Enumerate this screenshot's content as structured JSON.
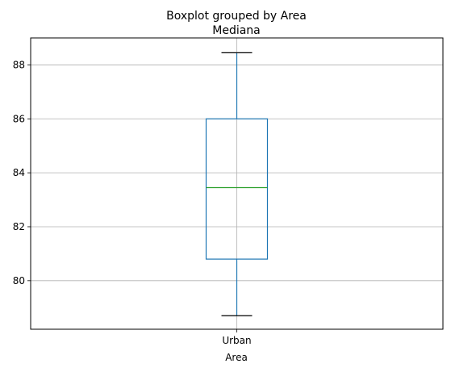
{
  "chart_data": {
    "type": "boxplot",
    "suptitle": "Boxplot grouped by Area",
    "title": "Mediana",
    "xlabel": "Area",
    "ylabel": "",
    "categories": [
      "Urban"
    ],
    "boxes": [
      {
        "category": "Urban",
        "whisker_low": 78.7,
        "q1": 80.8,
        "median": 83.45,
        "q3": 86.0,
        "whisker_high": 88.45
      }
    ],
    "ylim": [
      78.2,
      89.0
    ],
    "yticks": [
      80,
      82,
      84,
      86,
      88
    ],
    "grid": true,
    "colors": {
      "box": "#1f77b4",
      "median": "#2ca02c",
      "whisker_cap": "#000000",
      "grid": "#b0b0b0"
    }
  }
}
